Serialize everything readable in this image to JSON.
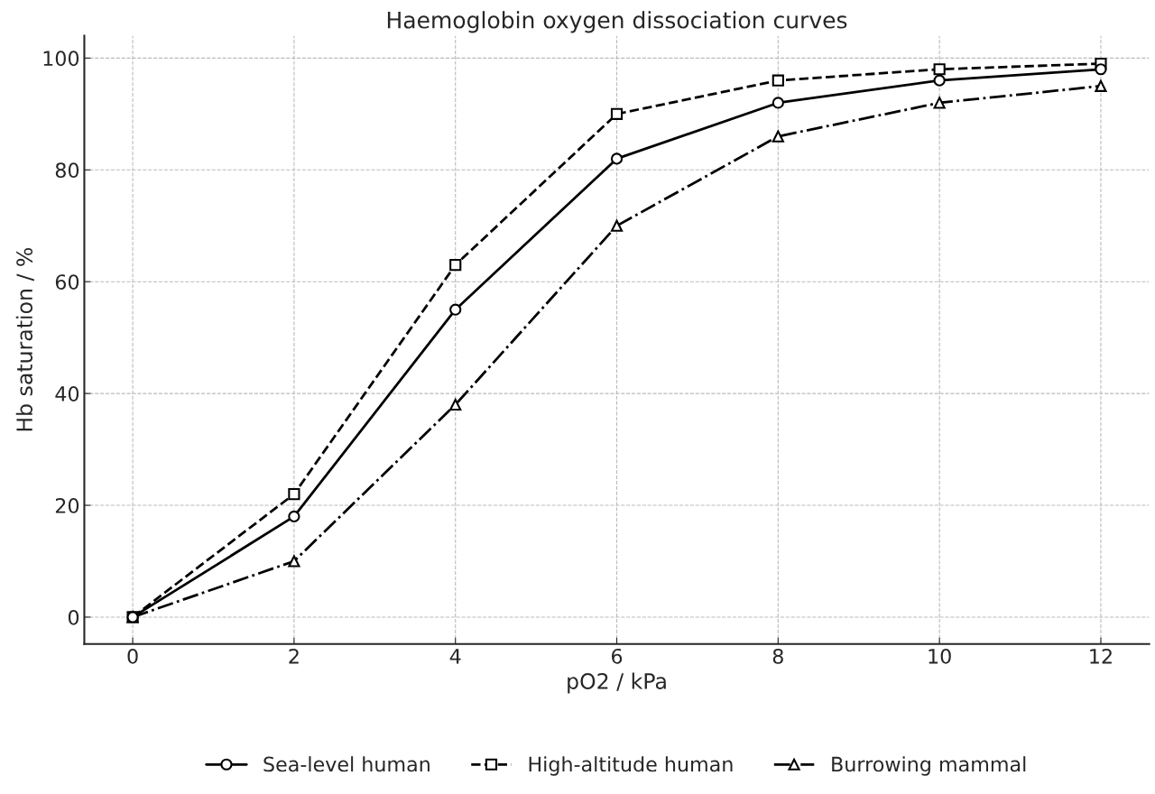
{
  "chart_data": {
    "type": "line",
    "title": "Haemoglobin oxygen dissociation curves",
    "xlabel": "pO2 / kPa",
    "ylabel": "Hb saturation / %",
    "x": [
      0,
      2,
      4,
      6,
      8,
      10,
      12
    ],
    "series": [
      {
        "name": "Sea-level human",
        "color": "#000000",
        "values": [
          0,
          18,
          55,
          82,
          92,
          96,
          98
        ],
        "marker": "circle",
        "line_style": "solid"
      },
      {
        "name": "High-altitude human",
        "color": "#000000",
        "values": [
          0,
          22,
          63,
          90,
          96,
          98,
          99
        ],
        "marker": "square",
        "line_style": "dashed"
      },
      {
        "name": "Burrowing mammal",
        "color": "#000000",
        "values": [
          0,
          10,
          38,
          70,
          86,
          92,
          95
        ],
        "marker": "triangle",
        "line_style": "dashdot"
      }
    ],
    "xlim": [
      -0.6,
      12.6
    ],
    "ylim": [
      -4.8,
      104
    ],
    "xticks": [
      0,
      2,
      4,
      6,
      8,
      10,
      12
    ],
    "yticks": [
      0,
      20,
      40,
      60,
      80,
      100
    ],
    "grid": true,
    "legend": "bottom"
  }
}
